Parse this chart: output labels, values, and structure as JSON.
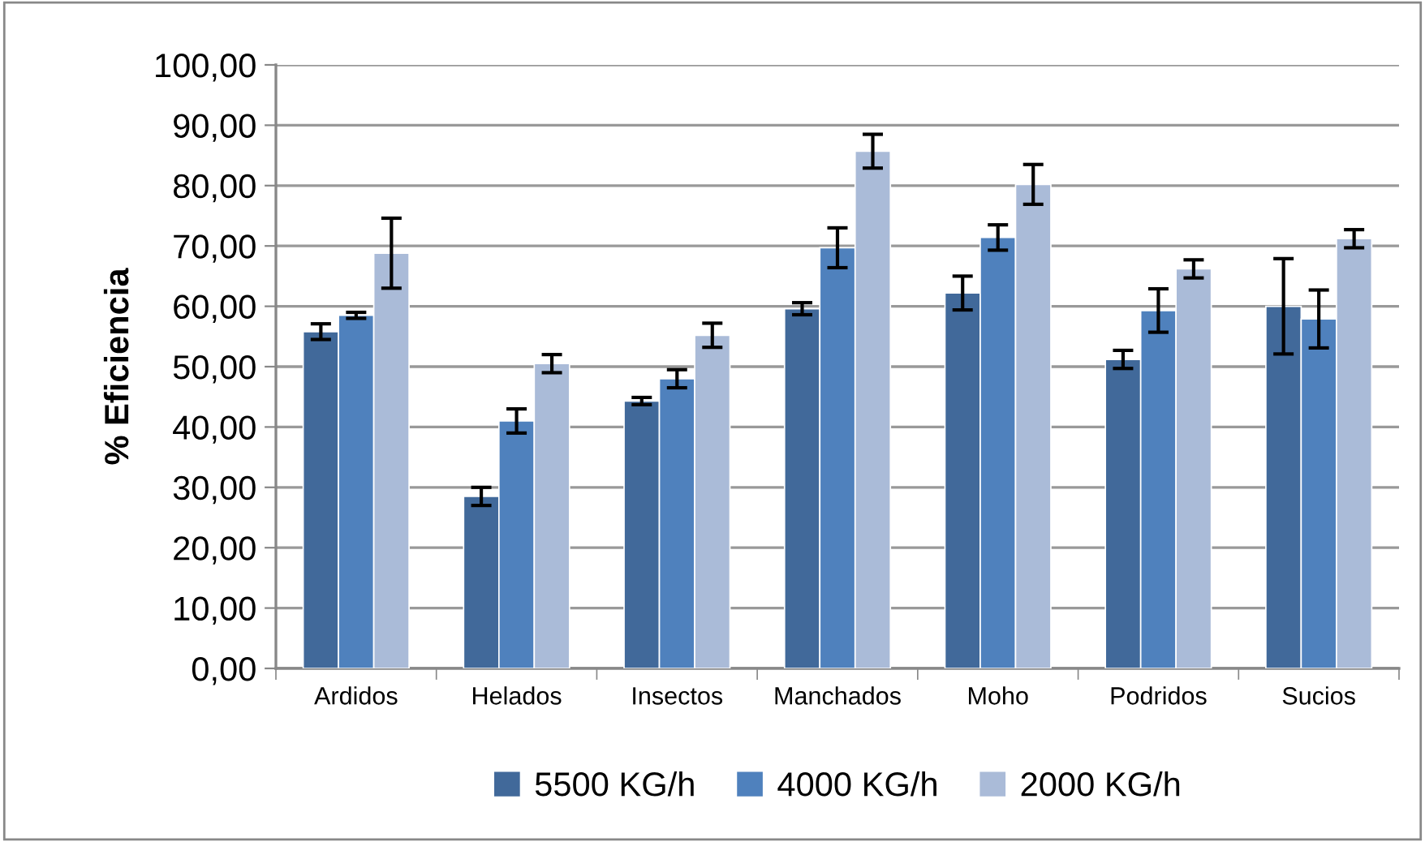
{
  "chart_data": {
    "type": "bar",
    "ylabel": "% Eficiencia",
    "categories": [
      "Ardidos",
      "Helados",
      "Insectos",
      "Manchados",
      "Moho",
      "Podridos",
      "Sucios"
    ],
    "series": [
      {
        "name": "5500 KG/h",
        "color": "#41699a",
        "values": [
          55.8,
          28.5,
          44.3,
          59.6,
          62.2,
          51.2,
          60.0
        ],
        "errors": [
          1.3,
          1.5,
          0.6,
          1.0,
          2.8,
          1.5,
          7.9
        ]
      },
      {
        "name": "4000 KG/h",
        "color": "#4f81bd",
        "values": [
          58.5,
          41.0,
          48.0,
          69.7,
          71.4,
          59.3,
          57.9
        ],
        "errors": [
          0.5,
          2.0,
          1.5,
          3.3,
          2.1,
          3.6,
          4.8
        ]
      },
      {
        "name": "2000 KG/h",
        "color": "#aabbd8",
        "values": [
          68.8,
          50.5,
          55.2,
          85.7,
          80.2,
          66.2,
          71.2
        ],
        "errors": [
          5.8,
          1.5,
          2.0,
          2.8,
          3.3,
          1.5,
          1.5
        ]
      }
    ],
    "ylim": [
      0,
      100
    ],
    "yticks": [
      {
        "value": 0,
        "label": "0,00"
      },
      {
        "value": 10,
        "label": "10,00"
      },
      {
        "value": 20,
        "label": "20,00"
      },
      {
        "value": 30,
        "label": "30,00"
      },
      {
        "value": 40,
        "label": "40,00"
      },
      {
        "value": 50,
        "label": "50,00"
      },
      {
        "value": 60,
        "label": "60,00"
      },
      {
        "value": 70,
        "label": "70,00"
      },
      {
        "value": 80,
        "label": "80,00"
      },
      {
        "value": 90,
        "label": "90,00"
      },
      {
        "value": 100,
        "label": "100,00"
      }
    ],
    "grid": "y",
    "legend": "bottom"
  }
}
